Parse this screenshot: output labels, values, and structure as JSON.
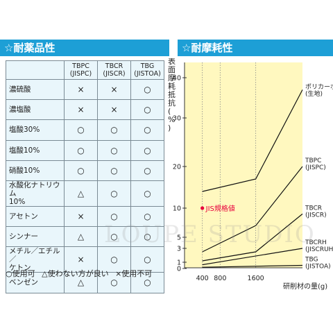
{
  "chem": {
    "heading": "☆耐薬品性",
    "columns": [
      "TBPC\n(JISPC)",
      "TBCR\n(JISCR)",
      "TBG\n(JISTOA)"
    ],
    "rows": [
      {
        "name": "濃硫酸",
        "marks": [
          "×",
          "×",
          "○"
        ]
      },
      {
        "name": "濃塩酸",
        "marks": [
          "×",
          "×",
          "○"
        ]
      },
      {
        "name": "塩酸30%",
        "marks": [
          "○",
          "○",
          "○"
        ]
      },
      {
        "name": "塩酸10%",
        "marks": [
          "○",
          "○",
          "○"
        ]
      },
      {
        "name": "硝酸10%",
        "marks": [
          "○",
          "○",
          "○"
        ]
      },
      {
        "name": "水酸化ナトリウム\n10%",
        "marks": [
          "△",
          "○",
          "○"
        ]
      },
      {
        "name": "アセトン",
        "marks": [
          "×",
          "○",
          "○"
        ]
      },
      {
        "name": "シンナー",
        "marks": [
          "△",
          "○",
          "○"
        ]
      },
      {
        "name": "メチル／エチル／\nケトン",
        "marks": [
          "×",
          "○",
          "○"
        ]
      },
      {
        "name": "ベンゼン",
        "marks": [
          "△",
          "○",
          "○"
        ]
      }
    ],
    "legend": [
      "○使用可",
      "△使わない方が良い",
      "×使用不可"
    ]
  },
  "wear": {
    "heading": "☆耐摩耗性"
  },
  "watermark": "LOUPE STUDIO",
  "colors": {
    "band": "#1d9fd6",
    "chart_bg": "#fff8bf",
    "jis": "#e8003c"
  },
  "chart_data": {
    "type": "line",
    "title": "",
    "ylabel": "表面摩耗抵抗(%)",
    "xlabel": "研削材の量(g)",
    "x_ticks": [
      400,
      800,
      1600
    ],
    "y_ticks": [
      0,
      1,
      3,
      5,
      10,
      20,
      30,
      40
    ],
    "xlim": [
      0,
      2650
    ],
    "ylim": [
      0,
      44
    ],
    "grid": "vertical dotted at x ticks",
    "series": [
      {
        "name": "ポリカーボネイト\n(生地)",
        "points": [
          [
            400,
            14
          ],
          [
            1600,
            17
          ],
          [
            2650,
            37
          ]
        ]
      },
      {
        "name": "TBPC\n(JISPC)",
        "points": [
          [
            400,
            2.5
          ],
          [
            1600,
            7
          ],
          [
            2650,
            20
          ]
        ]
      },
      {
        "name": "TBCR\n(JISCR)",
        "points": [
          [
            400,
            1.2
          ],
          [
            1600,
            2.5
          ],
          [
            2650,
            9
          ]
        ]
      },
      {
        "name": "TBCRH\n(JISCRUH)",
        "points": [
          [
            400,
            0.6
          ],
          [
            2650,
            3
          ]
        ]
      },
      {
        "name": "TBG\n(JISTOA)",
        "points": [
          [
            400,
            0.2
          ],
          [
            2650,
            0.5
          ]
        ]
      }
    ],
    "annotation": {
      "label": "JIS規格値",
      "x": 400,
      "y": 10
    }
  }
}
